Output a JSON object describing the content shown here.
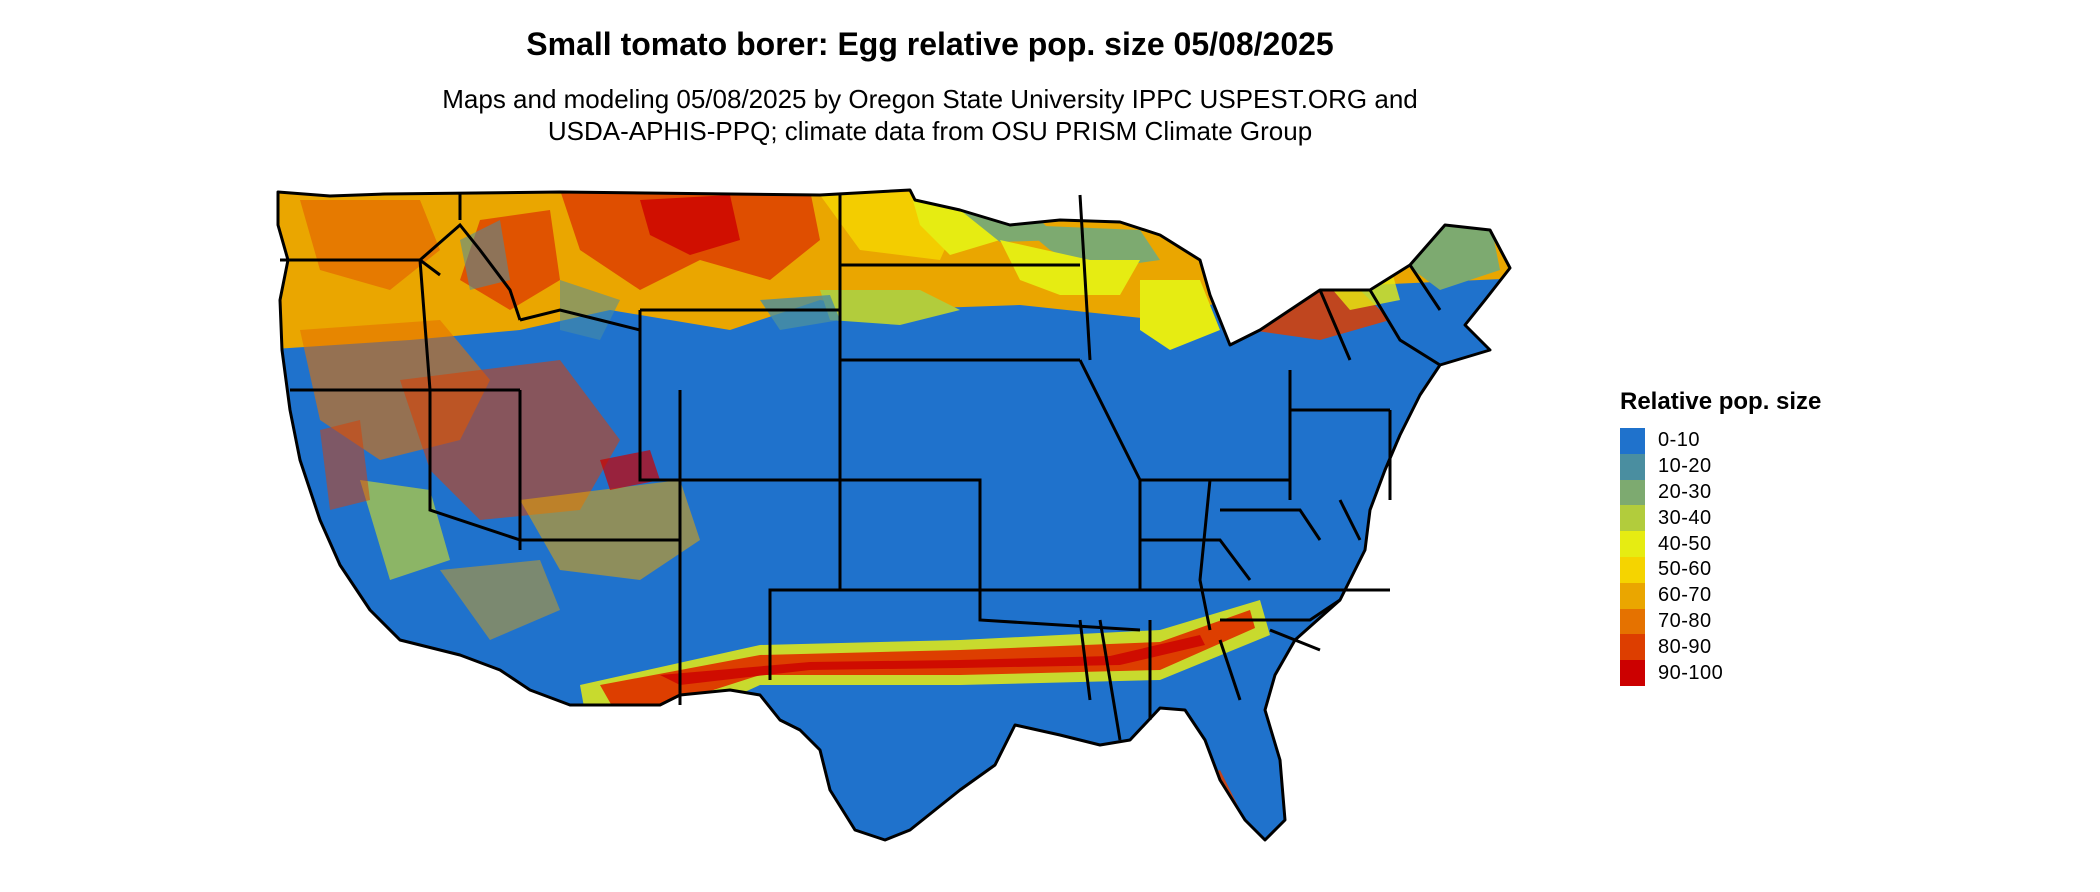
{
  "title": "Small tomato borer: Egg relative pop. size 05/08/2025",
  "subtitle_line1": "Maps and modeling 05/08/2025 by Oregon State University IPPC USPEST.ORG and",
  "subtitle_line2": "USDA-APHIS-PPQ; climate data from OSU PRISM Climate Group",
  "map": {
    "region": "Contiguous United States",
    "regional_levels": {
      "northern_tier_band": "60-70",
      "upper_midwest_band": "40-50",
      "central_and_southern": "0-10",
      "southern_band": "90-100"
    }
  },
  "legend": {
    "title": "Relative pop. size",
    "items": [
      {
        "label": "0-10",
        "color": "#1f72cc"
      },
      {
        "label": "10-20",
        "color": "#4a8ea0"
      },
      {
        "label": "20-30",
        "color": "#7daa70"
      },
      {
        "label": "30-40",
        "color": "#b2cc3c"
      },
      {
        "label": "40-50",
        "color": "#e6ec12"
      },
      {
        "label": "50-60",
        "color": "#f5d400"
      },
      {
        "label": "60-70",
        "color": "#eaa600"
      },
      {
        "label": "70-80",
        "color": "#e57200"
      },
      {
        "label": "80-90",
        "color": "#dd3e00"
      },
      {
        "label": "90-100",
        "color": "#cc0000"
      }
    ]
  }
}
